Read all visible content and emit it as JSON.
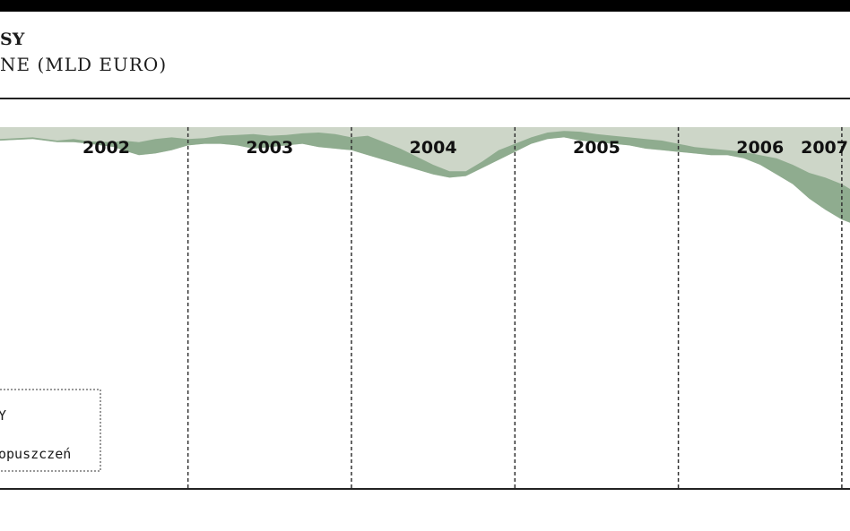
{
  "header": {
    "line1": "SY",
    "line2": "NE (MLD EURO)"
  },
  "legend": {
    "item1": "Y",
    "item2": "opuszczeń"
  },
  "colors": {
    "band": "#cdd6c8",
    "fill": "#8fac8f",
    "background": "#ffffff",
    "divider": "#333333"
  },
  "chart_data": {
    "type": "area",
    "title": "",
    "xlabel": "",
    "ylabel": "MLD EURO",
    "x_start": "2001.85",
    "x_end": "2007.05",
    "year_labels": [
      "2002",
      "2003",
      "2004",
      "2005",
      "2006",
      "2007"
    ],
    "year_boundaries": [
      2003,
      2004,
      2005,
      2006,
      2007
    ],
    "grid": "vertical dashed lines at year boundaries",
    "series": [
      {
        "x": [
          2001.85,
          2002.05,
          2002.2,
          2002.3,
          2002.4,
          2002.55,
          2002.6,
          2002.7,
          2002.8,
          2002.9,
          2003.0,
          2003.1,
          2003.2,
          2003.3,
          2003.4,
          2003.5,
          2003.6,
          2003.7,
          2003.8,
          2003.9,
          2004.0,
          2004.1,
          2004.2,
          2004.3,
          2004.4,
          2004.5,
          2004.6,
          2004.7,
          2004.8,
          2004.9,
          2005.0,
          2005.1,
          2005.2,
          2005.3,
          2005.4,
          2005.5,
          2005.6,
          2005.7,
          2005.8,
          2005.9,
          2006.0,
          2006.1,
          2006.2,
          2006.3,
          2006.4,
          2006.5,
          2006.6,
          2006.7,
          2006.8,
          2006.9,
          2007.0,
          2007.05
        ],
        "upper": [
          4.6,
          4.7,
          4.5,
          4.6,
          4.45,
          4.4,
          4.5,
          4.4,
          4.6,
          4.7,
          4.6,
          4.65,
          4.8,
          4.85,
          4.9,
          4.8,
          4.85,
          4.95,
          5.0,
          4.9,
          4.7,
          4.8,
          4.4,
          4.0,
          3.5,
          3.0,
          2.6,
          2.6,
          3.2,
          3.9,
          4.3,
          4.7,
          5.0,
          5.1,
          5.05,
          4.9,
          4.8,
          4.7,
          4.6,
          4.5,
          4.3,
          4.1,
          4.0,
          3.9,
          3.8,
          3.6,
          3.4,
          3.0,
          2.5,
          2.2,
          1.8,
          1.5
        ],
        "lower": [
          4.5,
          4.6,
          4.4,
          4.4,
          4.3,
          4.1,
          3.9,
          3.6,
          3.7,
          3.9,
          4.2,
          4.3,
          4.3,
          4.2,
          4.0,
          4.1,
          4.2,
          4.3,
          4.1,
          4.0,
          3.9,
          3.6,
          3.3,
          3.0,
          2.7,
          2.4,
          2.2,
          2.3,
          2.8,
          3.3,
          3.8,
          4.3,
          4.6,
          4.7,
          4.5,
          4.4,
          4.3,
          4.2,
          4.0,
          3.9,
          3.8,
          3.7,
          3.6,
          3.6,
          3.4,
          3.0,
          2.4,
          1.8,
          0.9,
          0.2,
          -0.4,
          -0.6
        ]
      }
    ]
  }
}
